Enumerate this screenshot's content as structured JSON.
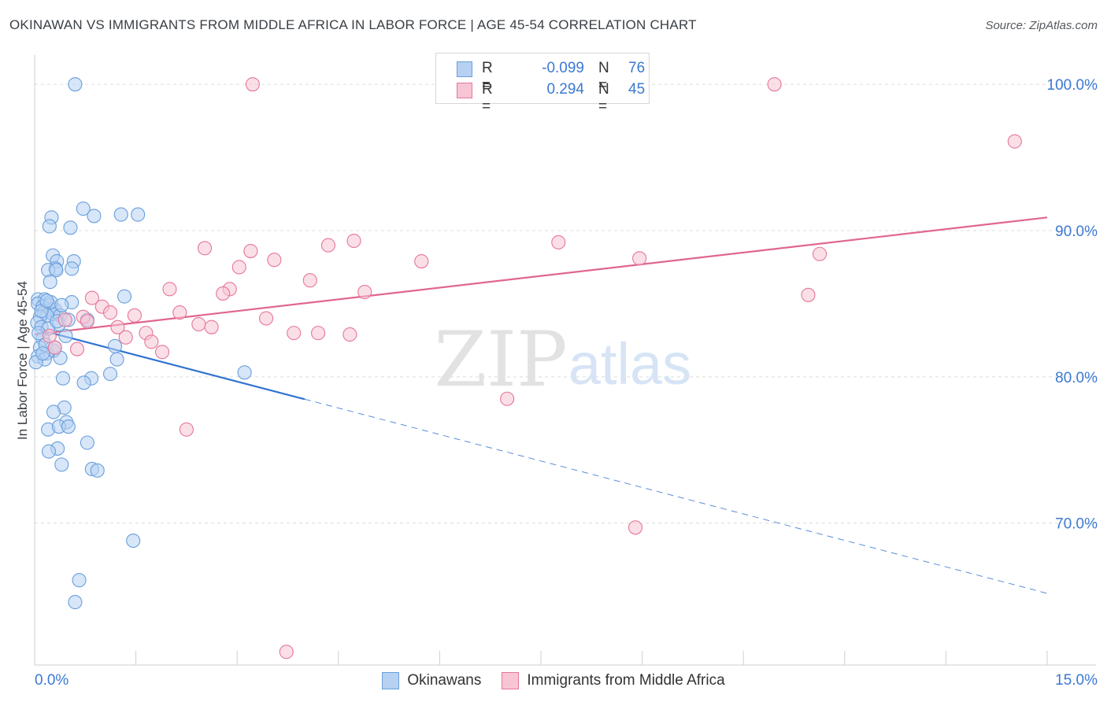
{
  "title": "OKINAWAN VS IMMIGRANTS FROM MIDDLE AFRICA IN LABOR FORCE | AGE 45-54 CORRELATION CHART",
  "source": "Source: ZipAtlas.com",
  "watermark": {
    "zip": "ZIP",
    "atlas": "atlas"
  },
  "legend_top": [
    {
      "r_label": "R =",
      "r_value": "-0.099",
      "n_label": "N =",
      "n_value": "76"
    },
    {
      "r_label": "R =",
      "r_value": "0.294",
      "n_label": "N =",
      "n_value": "45"
    }
  ],
  "chart_data": {
    "type": "scatter",
    "title": "OKINAWAN VS IMMIGRANTS FROM MIDDLE AFRICA IN LABOR FORCE | AGE 45-54 CORRELATION CHART",
    "xlabel": "",
    "ylabel": "In Labor Force | Age 45-54",
    "xlim": [
      0,
      15
    ],
    "ylim": [
      60.3,
      102
    ],
    "x_tick_labels": [
      "0.0%",
      "15.0%"
    ],
    "y_ticks": [
      100,
      90,
      80,
      70
    ],
    "y_tick_labels": [
      "100.0%",
      "90.0%",
      "80.0%",
      "70.0%"
    ],
    "legend_position": "bottom-center",
    "series": [
      {
        "name": "Okinawans",
        "color": "#6a9fdc",
        "fill": "#b7d1f2",
        "r": -0.099,
        "n": 76,
        "trend": {
          "x0": 0.0,
          "y0": 83.3,
          "x1": 15.0,
          "y1": 65.2,
          "solid_until_x": 4.0
        },
        "points": [
          [
            0.6,
            100.0
          ],
          [
            0.72,
            91.5
          ],
          [
            0.88,
            91.0
          ],
          [
            1.28,
            91.1
          ],
          [
            1.53,
            91.1
          ],
          [
            0.25,
            90.9
          ],
          [
            0.22,
            90.3
          ],
          [
            0.53,
            90.2
          ],
          [
            0.27,
            88.3
          ],
          [
            0.33,
            87.9
          ],
          [
            0.58,
            87.9
          ],
          [
            0.55,
            87.4
          ],
          [
            0.31,
            87.4
          ],
          [
            0.2,
            87.3
          ],
          [
            0.32,
            87.3
          ],
          [
            0.23,
            86.5
          ],
          [
            1.33,
            85.5
          ],
          [
            0.05,
            85.3
          ],
          [
            0.15,
            85.3
          ],
          [
            0.55,
            85.1
          ],
          [
            0.05,
            85.0
          ],
          [
            0.22,
            84.9
          ],
          [
            0.12,
            84.8
          ],
          [
            0.25,
            84.6
          ],
          [
            0.3,
            84.6
          ],
          [
            0.14,
            84.4
          ],
          [
            0.27,
            84.3
          ],
          [
            0.18,
            84.2
          ],
          [
            0.38,
            84.2
          ],
          [
            0.08,
            84.1
          ],
          [
            0.78,
            83.9
          ],
          [
            0.04,
            83.7
          ],
          [
            0.36,
            83.6
          ],
          [
            0.1,
            83.4
          ],
          [
            0.2,
            83.3
          ],
          [
            0.46,
            82.8
          ],
          [
            0.12,
            82.6
          ],
          [
            1.19,
            82.1
          ],
          [
            0.08,
            82.0
          ],
          [
            0.28,
            81.8
          ],
          [
            0.18,
            81.6
          ],
          [
            0.05,
            81.4
          ],
          [
            0.38,
            81.3
          ],
          [
            0.15,
            81.2
          ],
          [
            1.22,
            81.2
          ],
          [
            0.02,
            81.0
          ],
          [
            1.12,
            80.2
          ],
          [
            3.11,
            80.3
          ],
          [
            0.84,
            79.9
          ],
          [
            0.42,
            79.9
          ],
          [
            0.73,
            79.6
          ],
          [
            0.44,
            77.9
          ],
          [
            0.28,
            77.6
          ],
          [
            0.47,
            76.9
          ],
          [
            0.2,
            76.4
          ],
          [
            0.36,
            76.6
          ],
          [
            0.5,
            76.6
          ],
          [
            0.78,
            75.5
          ],
          [
            0.34,
            75.1
          ],
          [
            0.21,
            74.9
          ],
          [
            0.4,
            74.0
          ],
          [
            0.85,
            73.7
          ],
          [
            0.93,
            73.6
          ],
          [
            1.46,
            68.8
          ],
          [
            0.66,
            66.1
          ],
          [
            0.6,
            64.6
          ],
          [
            0.1,
            84.5
          ],
          [
            0.16,
            82.2
          ],
          [
            0.33,
            83.8
          ],
          [
            0.24,
            85.1
          ],
          [
            0.06,
            83.0
          ],
          [
            0.4,
            84.9
          ],
          [
            0.3,
            82.0
          ],
          [
            0.12,
            81.6
          ],
          [
            0.5,
            83.9
          ],
          [
            0.18,
            85.2
          ]
        ]
      },
      {
        "name": "Immigrants from Middle Africa",
        "color": "#e6769a",
        "fill": "#f8c5d4",
        "r": 0.294,
        "n": 45,
        "trend": {
          "x0": 0.0,
          "y0": 82.9,
          "x1": 15.0,
          "y1": 90.9
        },
        "points": [
          [
            3.23,
            100.0
          ],
          [
            10.96,
            100.0
          ],
          [
            14.52,
            96.1
          ],
          [
            4.73,
            89.3
          ],
          [
            4.35,
            89.0
          ],
          [
            7.76,
            89.2
          ],
          [
            2.52,
            88.8
          ],
          [
            3.2,
            88.6
          ],
          [
            11.63,
            88.4
          ],
          [
            3.55,
            88.0
          ],
          [
            5.73,
            87.9
          ],
          [
            8.96,
            88.1
          ],
          [
            3.03,
            87.5
          ],
          [
            4.08,
            86.6
          ],
          [
            2.0,
            86.0
          ],
          [
            2.89,
            86.0
          ],
          [
            4.89,
            85.8
          ],
          [
            2.79,
            85.7
          ],
          [
            11.46,
            85.6
          ],
          [
            0.85,
            85.4
          ],
          [
            1.0,
            84.8
          ],
          [
            1.12,
            84.4
          ],
          [
            2.15,
            84.4
          ],
          [
            1.48,
            84.2
          ],
          [
            3.43,
            84.0
          ],
          [
            0.72,
            84.1
          ],
          [
            0.45,
            83.9
          ],
          [
            0.78,
            83.8
          ],
          [
            2.43,
            83.6
          ],
          [
            2.62,
            83.4
          ],
          [
            1.23,
            83.4
          ],
          [
            1.65,
            83.0
          ],
          [
            4.67,
            82.9
          ],
          [
            3.84,
            83.0
          ],
          [
            4.2,
            83.0
          ],
          [
            1.35,
            82.7
          ],
          [
            1.73,
            82.4
          ],
          [
            0.3,
            82.0
          ],
          [
            0.63,
            81.9
          ],
          [
            1.89,
            81.7
          ],
          [
            7.0,
            78.5
          ],
          [
            2.25,
            76.4
          ],
          [
            8.9,
            69.7
          ],
          [
            3.73,
            61.2
          ],
          [
            0.22,
            82.8
          ]
        ]
      }
    ]
  }
}
